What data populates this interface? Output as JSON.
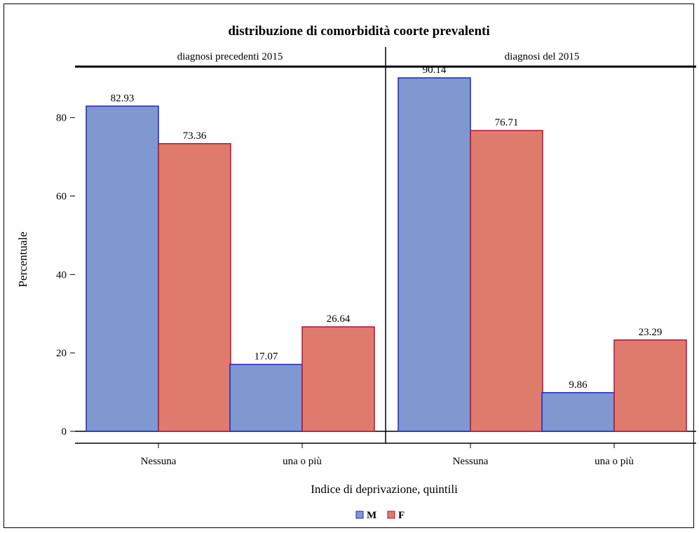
{
  "chart_data": {
    "type": "bar",
    "title": "distribuzione di comorbidità coorte prevalenti",
    "xlabel": "Indice di deprivazione, quintili",
    "ylabel": "Percentuale",
    "ylim": [
      0,
      93
    ],
    "yticks": [
      0,
      20,
      40,
      60,
      80
    ],
    "grid": false,
    "legend": "bottom",
    "categories": [
      "Nessuna",
      "una o più"
    ],
    "series_style": [
      {
        "name": "M",
        "fill": "#7f98cf",
        "stroke": "#1f24c8"
      },
      {
        "name": "F",
        "fill": "#df7b6d",
        "stroke": "#b5103a"
      }
    ],
    "panels": [
      {
        "label": "diagnosi precedenti 2015",
        "series": [
          {
            "name": "M",
            "values": [
              82.93,
              17.07
            ],
            "labels": [
              "82.93",
              "17.07"
            ]
          },
          {
            "name": "F",
            "values": [
              73.36,
              26.64
            ],
            "labels": [
              "73.36",
              "26.64"
            ]
          }
        ]
      },
      {
        "label": "diagnosi del 2015",
        "series": [
          {
            "name": "M",
            "values": [
              90.14,
              9.86
            ],
            "labels": [
              "90.14",
              "9.86"
            ]
          },
          {
            "name": "F",
            "values": [
              76.71,
              23.29
            ],
            "labels": [
              "76.71",
              "23.29"
            ]
          }
        ]
      }
    ]
  }
}
